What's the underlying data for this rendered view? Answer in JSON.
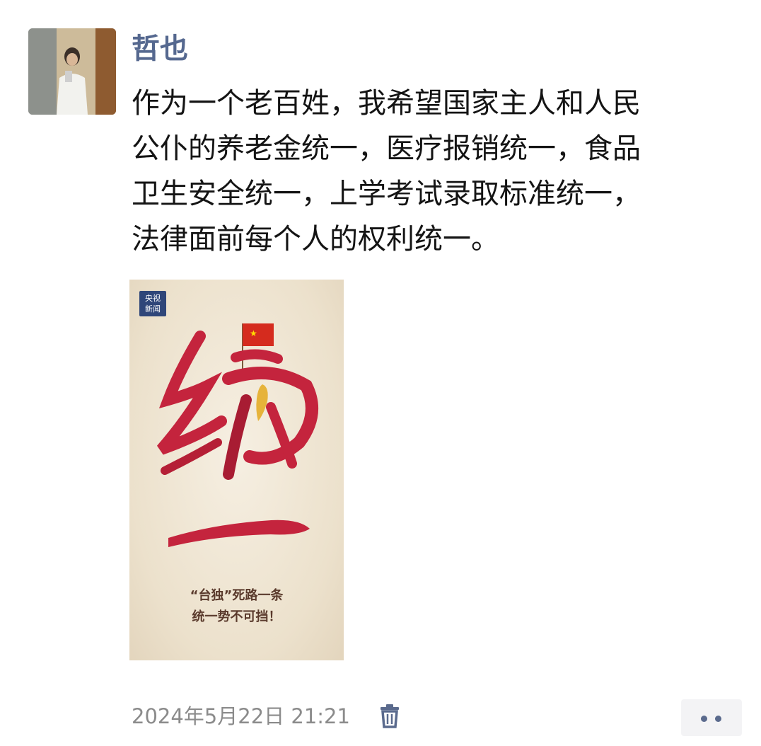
{
  "post": {
    "author": "哲也",
    "text": "作为一个老百姓，我希望国家主人和人民\n公仆的养老金统一，医疗报销统一，食品\n卫生安全统一，上学考试录取标准统一，\n法律面前每个人的权利统一。",
    "timestamp": "2024年5月22日 21:21"
  },
  "poster": {
    "logo_text": "央视\n新闻",
    "headline_chars": [
      "统",
      "一"
    ],
    "caption_line1": "“台独”死路一条",
    "caption_line2": "统一势不可挡！"
  },
  "icons": {
    "delete": "trash-icon",
    "more": "more-dots-icon"
  },
  "colors": {
    "author_name": "#55688f",
    "timestamp": "#8b8b8b",
    "brush_red": "#c4243d",
    "logo_blue": "#2f4679"
  }
}
